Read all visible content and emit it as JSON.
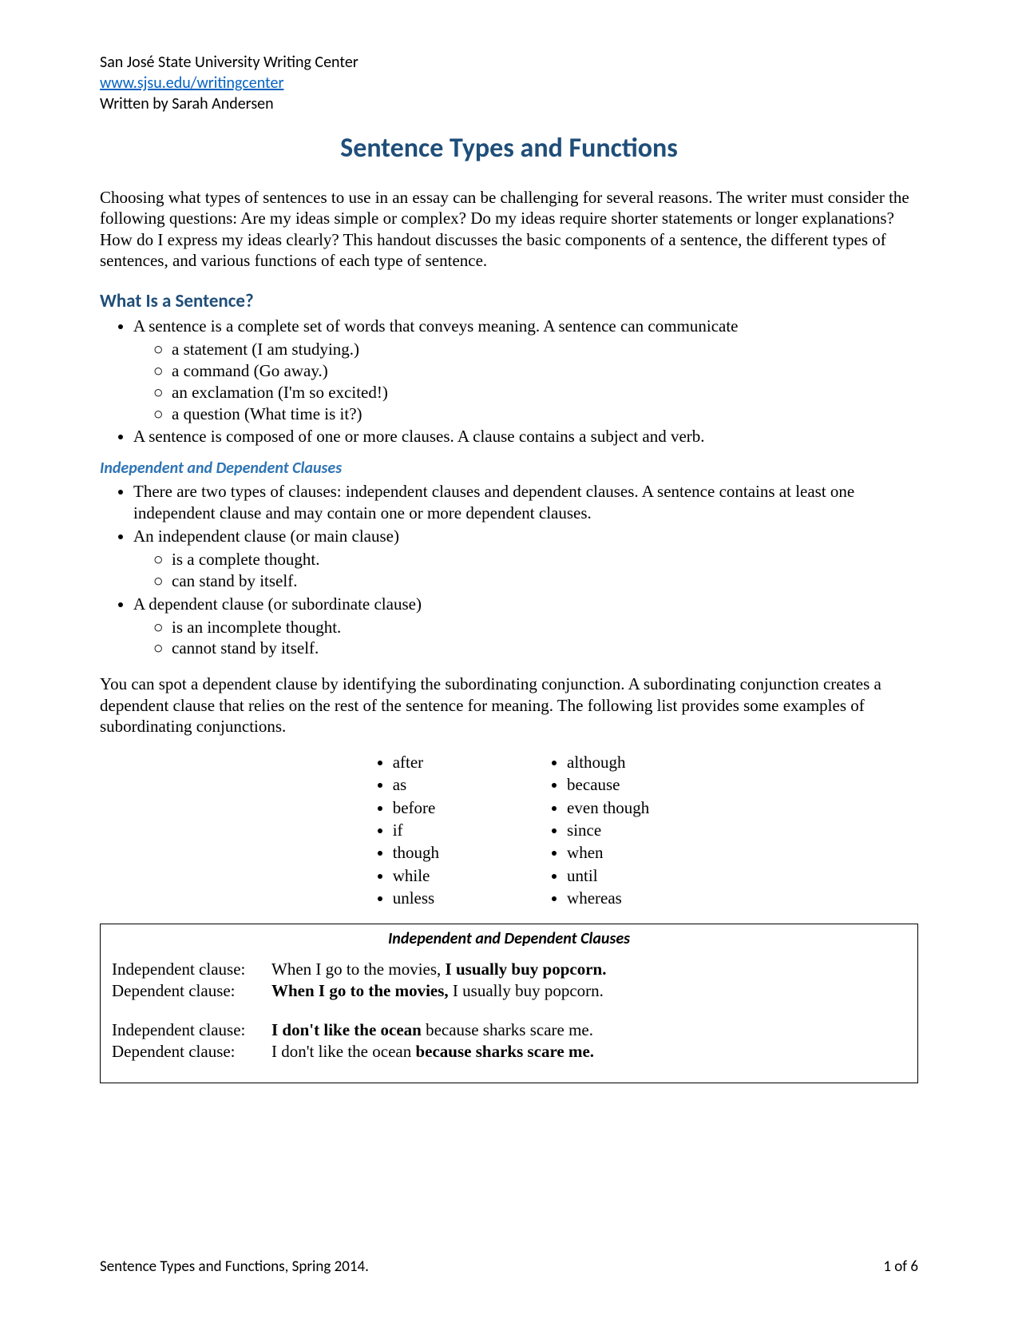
{
  "header": {
    "org": "San José State University Writing Center",
    "url": "www.sjsu.edu/writingcenter",
    "author": "Written by Sarah Andersen"
  },
  "title": "Sentence Types and Functions",
  "intro": "Choosing what types of sentences to use in an essay can be challenging for several reasons. The writer must consider the following questions: Are my ideas simple or complex? Do my ideas require shorter statements or longer explanations? How do I express my ideas clearly? This handout discusses the basic components of a sentence, the different types of sentences, and various functions of each type of sentence.",
  "section1": {
    "heading": "What Is a Sentence?",
    "b1": "A sentence is a complete set of words that conveys meaning. A sentence can communicate",
    "sub": {
      "s1": "a statement (I am studying.)",
      "s2": "a command (Go away.)",
      "s3": "an exclamation (I'm so excited!)",
      "s4": "a question (What time is it?)"
    },
    "b2": "A sentence is composed of one or more clauses. A clause contains a subject and verb."
  },
  "section2": {
    "heading": "Independent and Dependent Clauses",
    "b1": "There are two types of clauses: independent clauses and dependent clauses. A sentence contains at least one independent clause and may contain one or more dependent clauses.",
    "b2": "An independent clause (or main clause)",
    "b2sub": {
      "s1": "is a complete thought.",
      "s2": "can stand by itself."
    },
    "b3": "A dependent clause (or subordinate clause)",
    "b3sub": {
      "s1": "is an incomplete thought.",
      "s2": "cannot stand by itself."
    }
  },
  "para2": "You can spot a dependent clause by identifying the subordinating conjunction. A subordinating conjunction creates a dependent clause that relies on the rest of the sentence for meaning. The following list provides some examples of subordinating conjunctions.",
  "conjunctions": {
    "left": [
      "after",
      "as",
      "before",
      "if",
      "though",
      "while",
      "unless"
    ],
    "right": [
      "although",
      "because",
      "even though",
      "since",
      "when",
      "until",
      "whereas"
    ]
  },
  "exampleBox": {
    "title": "Independent and Dependent Clauses",
    "labels": {
      "ind": "Independent clause:",
      "dep": "Dependent clause:"
    },
    "ex1": {
      "ind_plain": "When I go to the movies, ",
      "ind_bold": "I usually buy popcorn.",
      "dep_bold": "When I go to the movies,",
      "dep_plain": " I usually buy popcorn."
    },
    "ex2": {
      "ind_bold": "I don't like the ocean",
      "ind_plain": " because sharks scare me.",
      "dep_plain": "I don't like the ocean ",
      "dep_bold": "because sharks scare me."
    }
  },
  "footer": {
    "left": "Sentence Types and Functions, Spring 2014.",
    "right": "1 of 6"
  },
  "colors": {
    "heading": "#1f4e79",
    "subheading": "#2e74b5",
    "link": "#0563c1",
    "text": "#000000",
    "background": "#ffffff"
  }
}
